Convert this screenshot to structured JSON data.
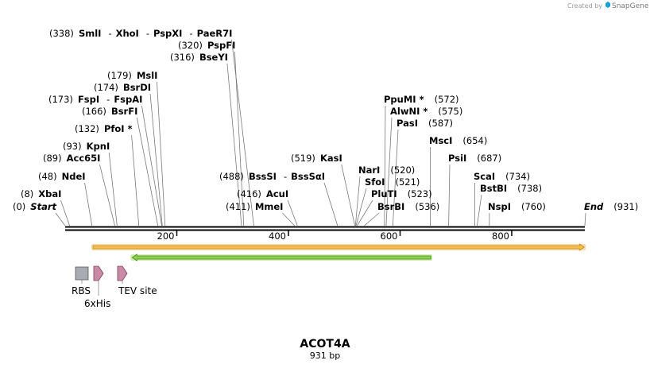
{
  "watermark": "Created by",
  "brand": "SnapGene",
  "brand_color": "#1a9fd6",
  "sequence": {
    "name": "ACOT4A",
    "length_label": "931 bp",
    "length": 931
  },
  "sites": [
    {
      "name": "Start",
      "pos": 0,
      "kind": "end"
    },
    {
      "name": "XbaI",
      "pos": 8
    },
    {
      "name": "NdeI",
      "pos": 48
    },
    {
      "name": "Acc65I",
      "pos": 89
    },
    {
      "name": "KpnI",
      "pos": 93
    },
    {
      "name": "PfoI *",
      "pos": 132
    },
    {
      "name": "BsrFI",
      "pos": 166
    },
    {
      "name": "FspI",
      "pos": 173,
      "aliases": [
        "FspAI"
      ]
    },
    {
      "name": "BsrDI",
      "pos": 174
    },
    {
      "name": "MslI",
      "pos": 179
    },
    {
      "name": "BseYI",
      "pos": 316
    },
    {
      "name": "PspFI",
      "pos": 320
    },
    {
      "name": "SmlI",
      "pos": 338,
      "aliases": [
        "XhoI",
        "PspXI",
        "PaeR7I"
      ]
    },
    {
      "name": "MmeI",
      "pos": 411
    },
    {
      "name": "AcuI",
      "pos": 416
    },
    {
      "name": "BssSI",
      "pos": 488,
      "aliases": [
        "BssSαI"
      ]
    },
    {
      "name": "KasI",
      "pos": 519
    },
    {
      "name": "NarI",
      "pos": 520
    },
    {
      "name": "SfoI",
      "pos": 521
    },
    {
      "name": "PluTI",
      "pos": 523
    },
    {
      "name": "BsrBI",
      "pos": 536
    },
    {
      "name": "PpuMI *",
      "pos": 572
    },
    {
      "name": "AlwNI *",
      "pos": 575
    },
    {
      "name": "PasI",
      "pos": 587
    },
    {
      "name": "MscI",
      "pos": 654
    },
    {
      "name": "PsiI",
      "pos": 687
    },
    {
      "name": "ScaI",
      "pos": 734
    },
    {
      "name": "BstBI",
      "pos": 738
    },
    {
      "name": "NspI",
      "pos": 760
    },
    {
      "name": "End",
      "pos": 931,
      "kind": "end"
    }
  ],
  "ticks": [
    200,
    400,
    600,
    800
  ],
  "features": [
    {
      "name": "orange-orf",
      "start": 50,
      "end": 930,
      "dir": 1,
      "fill": "#f5c04a",
      "stroke": "#c98a1a",
      "glow": "#f6dcb0"
    },
    {
      "name": "green-feature",
      "start": 120,
      "end": 655,
      "dir": -1,
      "fill": "#8fd14f",
      "stroke": "#3f8a1e",
      "glow": "#cfeeb0"
    }
  ],
  "small_features": [
    {
      "label": "RBS",
      "type": "rbs",
      "color": "#a9abb2"
    },
    {
      "label": "6xHis",
      "type": "tag",
      "color": "#c98aa6"
    },
    {
      "label": "TEV site",
      "type": "site",
      "color": "#c98aa6"
    }
  ]
}
